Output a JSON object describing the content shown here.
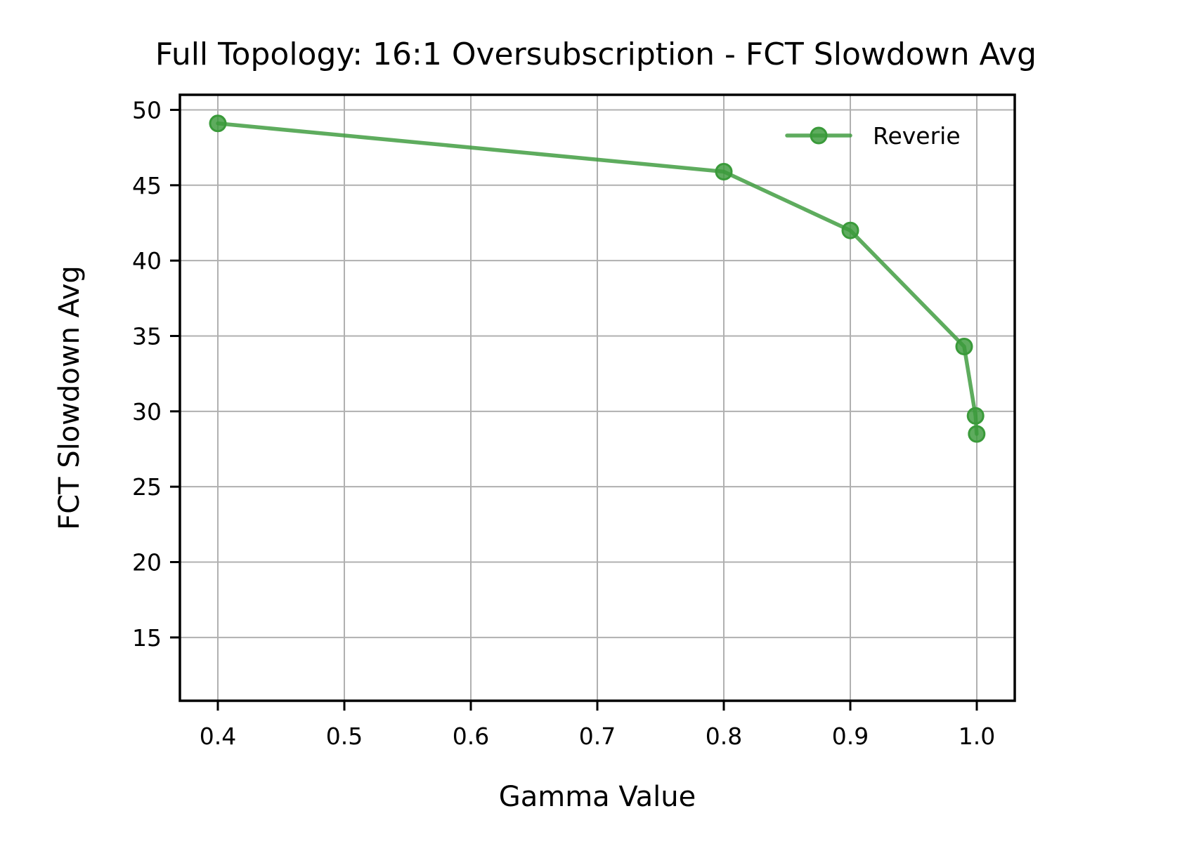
{
  "chart_data": {
    "type": "line",
    "title": "Full Topology: 16:1 Oversubscription - FCT Slowdown Avg",
    "xlabel": "Gamma Value",
    "ylabel": "FCT Slowdown Avg",
    "xlim": [
      0.37,
      1.03
    ],
    "ylim": [
      10.8,
      51.0
    ],
    "xticks": [
      0.4,
      0.5,
      0.6,
      0.7,
      0.8,
      0.9,
      1.0
    ],
    "xtick_labels": [
      "0.4",
      "0.5",
      "0.6",
      "0.7",
      "0.8",
      "0.9",
      "1.0"
    ],
    "yticks": [
      15,
      20,
      25,
      30,
      35,
      40,
      45,
      50
    ],
    "ytick_labels": [
      "15",
      "20",
      "25",
      "30",
      "35",
      "40",
      "45",
      "50"
    ],
    "grid": true,
    "legend_position": "top-right",
    "series": [
      {
        "name": "Reverie",
        "color": "#3a9a3a",
        "marker": "circle",
        "x": [
          0.4,
          0.8,
          0.9,
          0.99,
          0.999,
          0.9999
        ],
        "y": [
          49.1,
          45.9,
          42.0,
          34.3,
          29.7,
          28.5
        ]
      }
    ]
  }
}
